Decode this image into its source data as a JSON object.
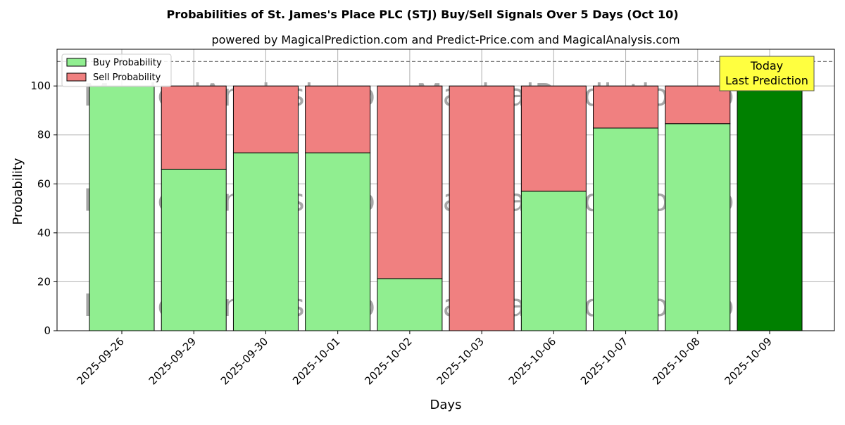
{
  "chart_data": {
    "type": "bar",
    "stacked": true,
    "title": "Probabilities of St. James's Place PLC (STJ) Buy/Sell Signals Over 5 Days (Oct 10)",
    "subtitle": "powered by MagicalPrediction.com and Predict-Price.com and MagicalAnalysis.com",
    "xlabel": "Days",
    "ylabel": "Probability",
    "ylim": [
      0,
      115
    ],
    "yticks": [
      0,
      20,
      40,
      60,
      80,
      100
    ],
    "grid": true,
    "legend_placement": "top-left",
    "reference_line": 110,
    "categories": [
      "2025-09-26",
      "2025-09-29",
      "2025-09-30",
      "2025-10-01",
      "2025-10-02",
      "2025-10-03",
      "2025-10-06",
      "2025-10-07",
      "2025-10-08",
      "2025-10-09"
    ],
    "series": [
      {
        "name": "Buy Probability",
        "color": "#90ee90",
        "values": [
          100,
          66,
          72.7,
          72.7,
          21.3,
          0,
          57,
          82.8,
          84.6,
          100
        ]
      },
      {
        "name": "Sell Probability",
        "color": "#f08080",
        "values": [
          0,
          34,
          27.3,
          27.3,
          78.7,
          100,
          43,
          17.2,
          15.4,
          0
        ]
      }
    ],
    "highlight": {
      "index": 9,
      "color": "#008000"
    },
    "annotation": {
      "line1": "Today",
      "line2": "Last Prediction",
      "background": "#ffff40"
    },
    "watermarks": [
      "MagicalAnalysis.com",
      "MagicalPrediction.com"
    ]
  }
}
